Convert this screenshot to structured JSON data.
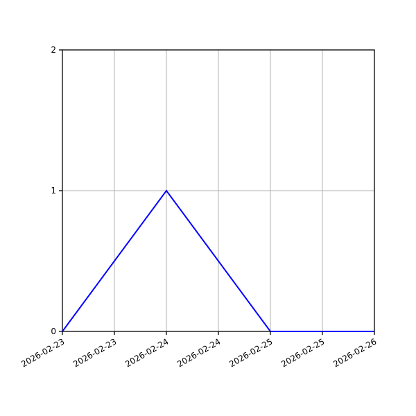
{
  "figure": {
    "background_color": "#ffffff"
  },
  "chart_data": {
    "type": "line",
    "title": "",
    "xlabel": "",
    "ylabel": "",
    "grid": true,
    "grid_color": "#b0b0b0",
    "axis_color": "#000000",
    "legend": null,
    "x_ticks": {
      "labels": [
        "2026-02-23",
        "2026-02-23",
        "2026-02-24",
        "2026-02-24",
        "2026-02-25",
        "2026-02-25",
        "2026-02-26"
      ],
      "interval": "12 hours",
      "rotation_deg": 30
    },
    "y_ticks": {
      "labels": [
        "0",
        "1",
        "2"
      ],
      "values": [
        0,
        1,
        2
      ]
    },
    "ylim": [
      0,
      2
    ],
    "xlim_tick_units": [
      0,
      6
    ],
    "series": [
      {
        "name": "line-1",
        "color": "#0000ff",
        "line_width": 2,
        "points_tick_units": [
          {
            "x": 0,
            "y": 0
          },
          {
            "x": 2,
            "y": 1
          },
          {
            "x": 4,
            "y": 0
          },
          {
            "x": 6,
            "y": 0
          }
        ]
      }
    ]
  }
}
